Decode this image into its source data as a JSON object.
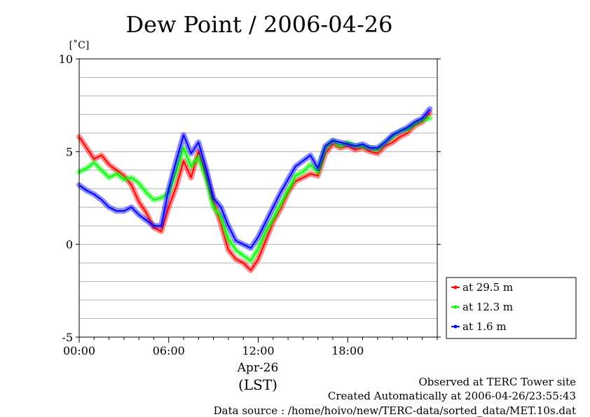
{
  "chart_data": {
    "type": "line",
    "title": "Dew Point / 2006-04-26",
    "ylabel": "[˚C]",
    "ylim": [
      -5,
      10
    ],
    "yticks": [
      -5,
      0,
      5,
      10
    ],
    "ygrid_step": 1,
    "xlim": [
      0,
      24
    ],
    "xtick_hours": [
      0,
      6,
      12,
      18
    ],
    "xtick_labels": [
      "00:00",
      "06:00",
      "12:00",
      "18:00"
    ],
    "xlabel_date": "Apr-26",
    "xlabel_unit": "(LST)",
    "grid": true,
    "legend_position": "right",
    "series": [
      {
        "name": "at 29.5 m",
        "color": "#ff0000",
        "x": [
          0,
          0.5,
          1,
          1.5,
          2,
          2.5,
          3,
          3.5,
          4,
          4.5,
          5,
          5.5,
          6,
          6.5,
          7,
          7.5,
          8,
          8.5,
          9,
          9.5,
          10,
          10.5,
          11,
          11.5,
          12,
          12.5,
          13,
          13.5,
          14,
          14.5,
          15,
          15.5,
          16,
          16.5,
          17,
          17.5,
          18,
          18.5,
          19,
          19.5,
          20,
          20.5,
          21,
          21.5,
          22,
          22.5,
          23,
          23.5
        ],
        "y": [
          5.8,
          5.2,
          4.6,
          4.8,
          4.3,
          4.0,
          3.7,
          3.2,
          2.3,
          1.7,
          0.9,
          0.7,
          2.0,
          3.1,
          4.5,
          3.6,
          5.0,
          3.8,
          2.3,
          1.1,
          -0.3,
          -0.8,
          -1.0,
          -1.4,
          -0.8,
          0.2,
          1.2,
          1.9,
          2.8,
          3.4,
          3.6,
          3.8,
          3.7,
          4.9,
          5.4,
          5.2,
          5.3,
          5.1,
          5.2,
          5.0,
          4.9,
          5.3,
          5.5,
          5.8,
          6.0,
          6.4,
          6.6,
          7.1
        ]
      },
      {
        "name": "at 12.3 m",
        "color": "#00ff00",
        "x": [
          0,
          0.5,
          1,
          1.5,
          2,
          2.5,
          3,
          3.5,
          4,
          4.5,
          5,
          5.5,
          6,
          6.5,
          7,
          7.5,
          8,
          8.5,
          9,
          9.5,
          10,
          10.5,
          11,
          11.5,
          12,
          12.5,
          13,
          13.5,
          14,
          14.5,
          15,
          15.5,
          16,
          16.5,
          17,
          17.5,
          18,
          18.5,
          19,
          19.5,
          20,
          20.5,
          21,
          21.5,
          22,
          22.5,
          23,
          23.5
        ],
        "y": [
          3.9,
          4.1,
          4.4,
          4.0,
          3.6,
          3.8,
          3.5,
          3.6,
          3.3,
          2.8,
          2.4,
          2.5,
          2.8,
          3.9,
          5.2,
          4.2,
          4.7,
          3.6,
          2.0,
          1.5,
          0.3,
          -0.3,
          -0.6,
          -0.9,
          -0.2,
          0.7,
          1.4,
          2.2,
          2.9,
          3.7,
          3.9,
          4.3,
          3.9,
          5.2,
          5.6,
          5.3,
          5.5,
          5.3,
          5.3,
          5.2,
          5.1,
          5.5,
          5.8,
          6.1,
          6.2,
          6.5,
          6.7,
          6.8
        ]
      },
      {
        "name": "at 1.6 m",
        "color": "#0000ff",
        "x": [
          0,
          0.5,
          1,
          1.5,
          2,
          2.5,
          3,
          3.5,
          4,
          4.5,
          5,
          5.5,
          6,
          6.5,
          7,
          7.5,
          8,
          8.5,
          9,
          9.5,
          10,
          10.5,
          11,
          11.5,
          12,
          12.5,
          13,
          13.5,
          14,
          14.5,
          15,
          15.5,
          16,
          16.5,
          17,
          17.5,
          18,
          18.5,
          19,
          19.5,
          20,
          20.5,
          21,
          21.5,
          22,
          22.5,
          23,
          23.5
        ],
        "y": [
          3.2,
          2.9,
          2.7,
          2.4,
          2.0,
          1.8,
          1.8,
          2.0,
          1.6,
          1.3,
          1.0,
          1.0,
          3.0,
          4.5,
          5.9,
          4.9,
          5.5,
          4.1,
          2.5,
          2.0,
          1.0,
          0.2,
          0.0,
          -0.2,
          0.4,
          1.2,
          2.0,
          2.8,
          3.5,
          4.2,
          4.5,
          4.8,
          4.1,
          5.3,
          5.6,
          5.5,
          5.4,
          5.3,
          5.4,
          5.2,
          5.2,
          5.5,
          5.9,
          6.1,
          6.3,
          6.6,
          6.8,
          7.3
        ]
      }
    ]
  },
  "footer": {
    "line1": "Observed at TERC Tower site",
    "line2": "Created Automatically at 2006-04-26/23:55:43",
    "line3": "Data source : /home/hoivo/new/TERC-data/sorted_data/MET.10s.dat"
  }
}
